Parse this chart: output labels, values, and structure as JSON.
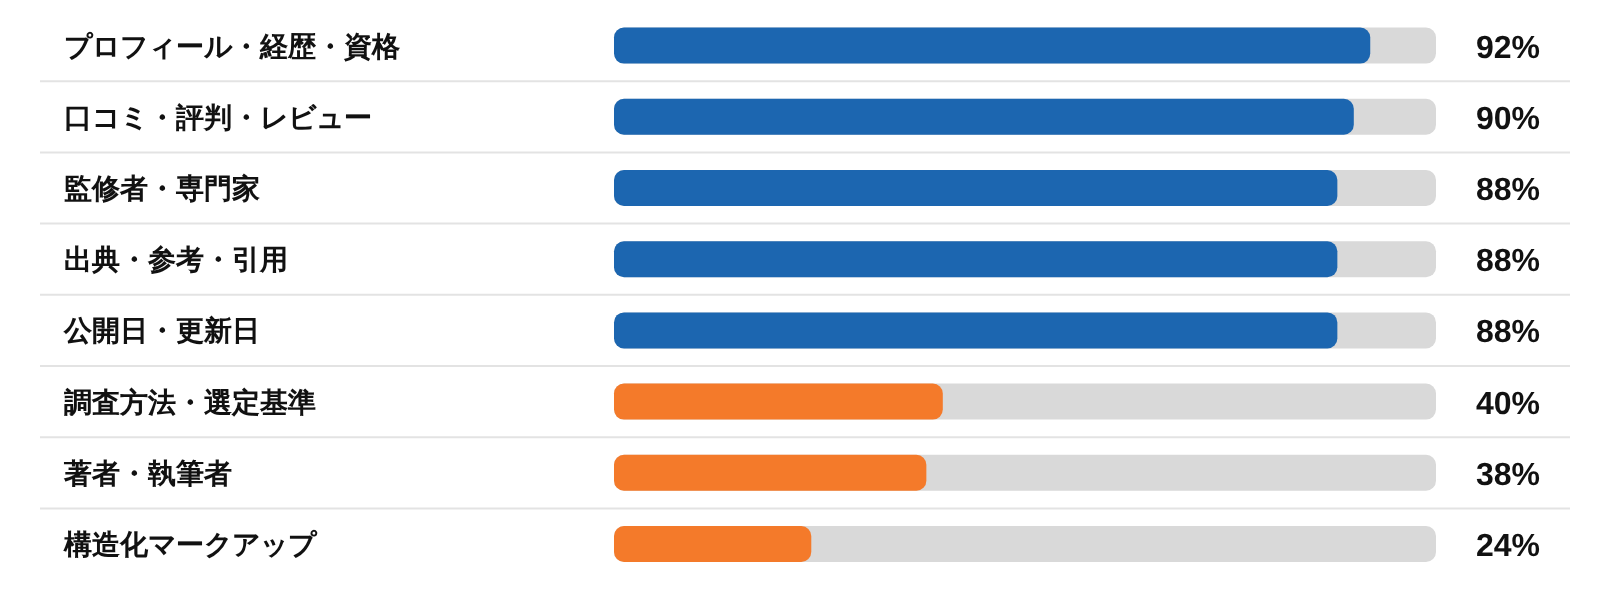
{
  "chart_data": {
    "type": "bar",
    "orientation": "horizontal",
    "categories": [
      "プロフィール・経歴・資格",
      "口コミ・評判・レビュー",
      "監修者・専門家",
      "出典・参考・引用",
      "公開日・更新日",
      "調査方法・選定基準",
      "著者・執筆者",
      "構造化マークアップ"
    ],
    "values": [
      92,
      90,
      88,
      88,
      88,
      40,
      38,
      24
    ],
    "colors": [
      "#1c66b0",
      "#1c66b0",
      "#1c66b0",
      "#1c66b0",
      "#1c66b0",
      "#f47a2a",
      "#f47a2a",
      "#f47a2a"
    ],
    "value_labels": [
      "92%",
      "90%",
      "88%",
      "88%",
      "88%",
      "40%",
      "38%",
      "24%"
    ],
    "xlim": [
      0,
      100
    ],
    "tick_labels": "y",
    "grid": "y"
  }
}
